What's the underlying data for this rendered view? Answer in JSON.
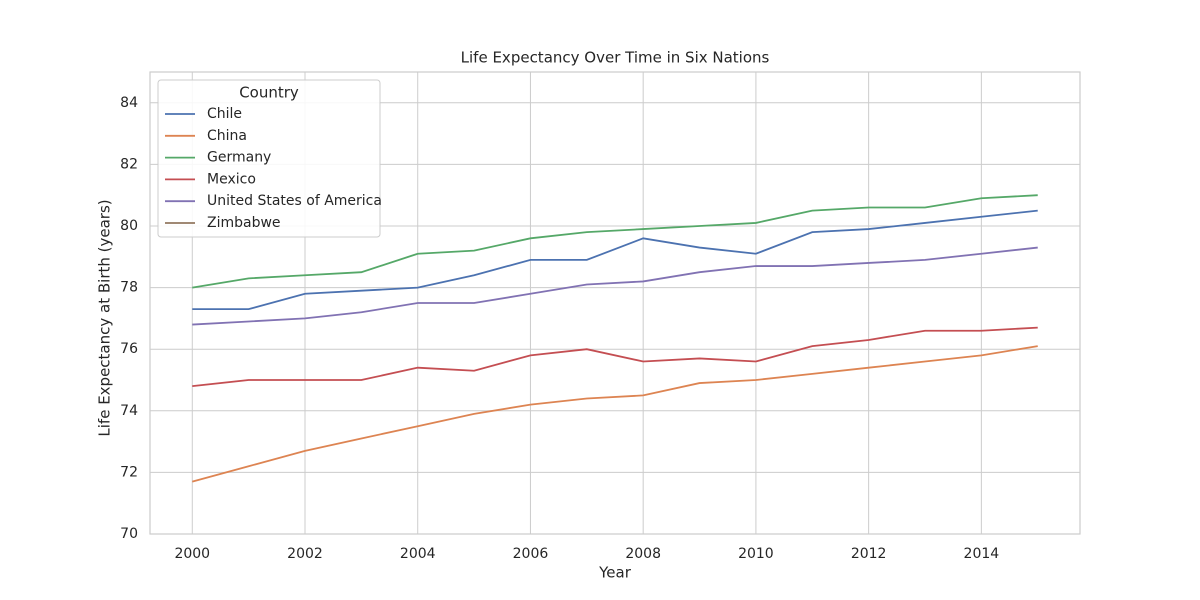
{
  "chart_data": {
    "type": "line",
    "title": "Life Expectancy Over Time in Six Nations",
    "x_label": "Year",
    "y_label": "Life Expectancy at Birth (years)",
    "legend_title": "Country",
    "legend": "upper left",
    "grid": true,
    "x": [
      2000,
      2001,
      2002,
      2003,
      2004,
      2005,
      2006,
      2007,
      2008,
      2009,
      2010,
      2011,
      2012,
      2013,
      2014,
      2015
    ],
    "xlim": [
      1999.25,
      2015.75
    ],
    "xticks": [
      2000,
      2002,
      2004,
      2006,
      2008,
      2010,
      2012,
      2014
    ],
    "ylim": [
      70,
      85
    ],
    "yticks": [
      70,
      72,
      74,
      76,
      78,
      80,
      82,
      84
    ],
    "series": [
      {
        "name": "Chile",
        "color": "#4c72b0",
        "values": [
          77.3,
          77.3,
          77.8,
          77.9,
          78.0,
          78.4,
          78.9,
          78.9,
          79.6,
          79.3,
          79.1,
          79.8,
          79.9,
          80.1,
          80.3,
          80.5
        ]
      },
      {
        "name": "China",
        "color": "#dd8452",
        "values": [
          71.7,
          72.2,
          72.7,
          73.1,
          73.5,
          73.9,
          74.2,
          74.4,
          74.5,
          74.9,
          75.0,
          75.2,
          75.4,
          75.6,
          75.8,
          76.1
        ]
      },
      {
        "name": "Germany",
        "color": "#55a868",
        "values": [
          78.0,
          78.3,
          78.4,
          78.5,
          79.1,
          79.2,
          79.6,
          79.8,
          79.9,
          80.0,
          80.1,
          80.5,
          80.6,
          80.6,
          80.9,
          81.0
        ]
      },
      {
        "name": "Mexico",
        "color": "#c44e52",
        "values": [
          74.8,
          75.0,
          75.0,
          75.0,
          75.4,
          75.3,
          75.8,
          76.0,
          75.6,
          75.7,
          75.6,
          76.1,
          76.3,
          76.6,
          76.6,
          76.7
        ]
      },
      {
        "name": "United States of America",
        "color": "#8172b3",
        "values": [
          76.8,
          76.9,
          77.0,
          77.2,
          77.5,
          77.5,
          77.8,
          78.1,
          78.2,
          78.5,
          78.7,
          78.7,
          78.8,
          78.9,
          79.1,
          79.3
        ]
      },
      {
        "name": "Zimbabwe",
        "color": "#937860",
        "values": [
          null,
          null,
          null,
          null,
          null,
          null,
          null,
          null,
          null,
          null,
          null,
          null,
          null,
          null,
          null,
          null
        ]
      }
    ]
  }
}
